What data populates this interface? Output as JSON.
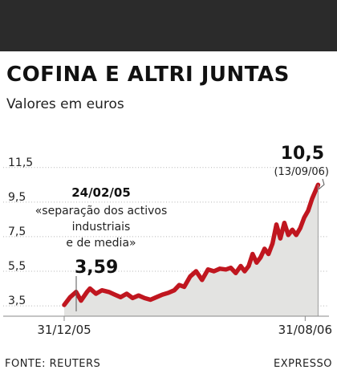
{
  "header": {
    "bar_color": "#2b2b2b",
    "title": "COFINA E ALTRI JUNTAS",
    "subtitle": "Valores em euros"
  },
  "chart_data": {
    "type": "area",
    "title": "COFINA E ALTRI JUNTAS",
    "subtitle": "Valores em euros",
    "xlabel": "",
    "ylabel": "",
    "x_ticks": [
      "31/12/05",
      "31/08/06"
    ],
    "y_ticks": [
      3.5,
      5.5,
      7.5,
      9.5,
      11.5
    ],
    "y_tick_labels": [
      "3,5",
      "5,5",
      "7,5",
      "9,5",
      "11,5"
    ],
    "ylim": [
      2.9,
      13.3
    ],
    "xlim": [
      "2005-12-31",
      "2006-09-24"
    ],
    "grid": "horizontal",
    "line_color": "#c0161f",
    "fill_color": "#e3e3e1",
    "series": [
      {
        "x": [
          "2005-12-31",
          "2006-01-06",
          "2006-01-12",
          "2006-01-17",
          "2006-01-23",
          "2006-01-26",
          "2006-02-01",
          "2006-02-07",
          "2006-02-14",
          "2006-02-20",
          "2006-02-26",
          "2006-03-04",
          "2006-03-10",
          "2006-03-16",
          "2006-03-22",
          "2006-03-28",
          "2006-04-03",
          "2006-04-09",
          "2006-04-15",
          "2006-04-21",
          "2006-04-26",
          "2006-05-01",
          "2006-05-07",
          "2006-05-13",
          "2006-05-19",
          "2006-05-25",
          "2006-05-31",
          "2006-06-06",
          "2006-06-12",
          "2006-06-17",
          "2006-06-22",
          "2006-06-27",
          "2006-07-01",
          "2006-07-05",
          "2006-07-09",
          "2006-07-13",
          "2006-07-17",
          "2006-07-21",
          "2006-07-25",
          "2006-07-29",
          "2006-08-02",
          "2006-08-06",
          "2006-08-10",
          "2006-08-14",
          "2006-08-18",
          "2006-08-22",
          "2006-08-26",
          "2006-08-30",
          "2006-09-03",
          "2006-09-07",
          "2006-09-10",
          "2006-09-13"
        ],
        "values": [
          3.55,
          4.0,
          4.3,
          3.8,
          4.3,
          4.5,
          4.2,
          4.4,
          4.3,
          4.15,
          4.0,
          4.2,
          3.95,
          4.1,
          3.95,
          3.85,
          4.0,
          4.15,
          4.25,
          4.4,
          4.7,
          4.6,
          5.2,
          5.5,
          5.0,
          5.6,
          5.5,
          5.65,
          5.6,
          5.7,
          5.4,
          5.8,
          5.5,
          5.8,
          6.5,
          6.0,
          6.3,
          6.8,
          6.5,
          7.1,
          8.2,
          7.4,
          8.3,
          7.6,
          7.9,
          7.6,
          8.0,
          8.6,
          9.0,
          9.7,
          10.1,
          10.5
        ]
      }
    ],
    "annotations": [
      {
        "label": "3,59",
        "x": "2006-01-26",
        "y": 3.59
      },
      {
        "label": "24/02/05",
        "text": "«separação dos activos industriais e de media»"
      },
      {
        "label": "10,5",
        "date": "(13/09/06)",
        "x": "2006-09-13",
        "y": 10.5
      }
    ]
  },
  "annotation_texts": {
    "min_value": "3,59",
    "event_date": "24/02/05",
    "event_lines": [
      "«separação dos activos",
      "industriais",
      "e de media»"
    ],
    "max_value": "10,5",
    "max_date": "(13/09/06)"
  },
  "footer": {
    "source": "FONTE: REUTERS",
    "publisher": "EXPRESSO"
  }
}
